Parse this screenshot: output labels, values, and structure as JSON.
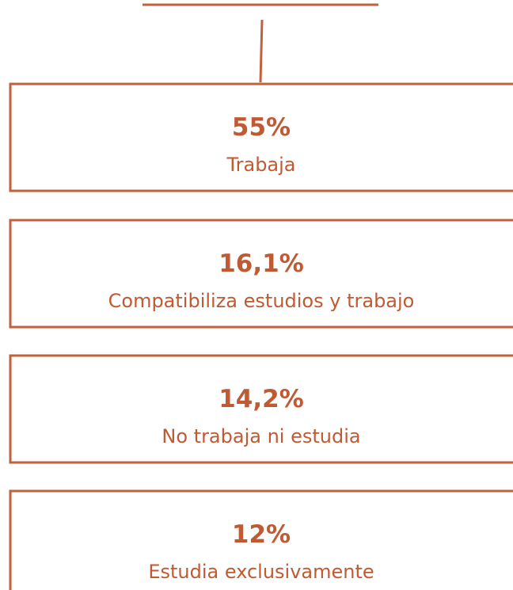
{
  "boxes": [
    {
      "value": "55%",
      "label": "Trabaja"
    },
    {
      "value": "16,1%",
      "label": "Compatibiliza estudios y trabajo"
    },
    {
      "value": "14,2%",
      "label": "No trabaja ni estudia"
    },
    {
      "value": "12%",
      "label": "Estudia exclusivamente"
    }
  ]
}
